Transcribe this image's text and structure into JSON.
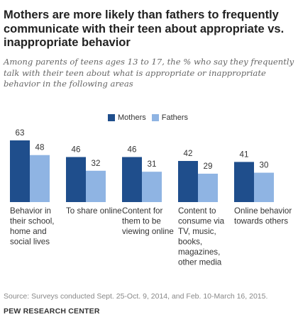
{
  "title": "Mothers are more likely than fathers to frequently communicate with their teen about appropriate vs. inappropriate behavior",
  "subtitle": "Among parents of teens ages 13 to 17, the % who say they frequently talk with their teen about what is appropriate or inappropriate behavior in the following areas",
  "source": "Source: Surveys conducted Sept. 25-Oct. 9, 2014, and Feb. 10-March 16, 2015.",
  "org": "PEW RESEARCH CENTER",
  "colors": {
    "mothers": "#1f4e8c",
    "fathers": "#8fb4e3",
    "label": "#333333"
  },
  "chart_data": {
    "type": "bar",
    "categories": [
      [
        "Behavior in",
        "their school,",
        "home and",
        "social lives"
      ],
      [
        "To share online"
      ],
      [
        "Content for",
        "them to be",
        "viewing online"
      ],
      [
        "Content to",
        "consume via",
        "TV, music,",
        "books,",
        "magazines,",
        "other media"
      ],
      [
        "Online behavior",
        "towards others"
      ]
    ],
    "series": [
      {
        "name": "Mothers",
        "values": [
          63,
          46,
          46,
          42,
          41
        ]
      },
      {
        "name": "Fathers",
        "values": [
          48,
          32,
          31,
          29,
          30
        ]
      }
    ],
    "ylim": [
      0,
      63
    ],
    "legend": "top-center",
    "grid": false
  }
}
